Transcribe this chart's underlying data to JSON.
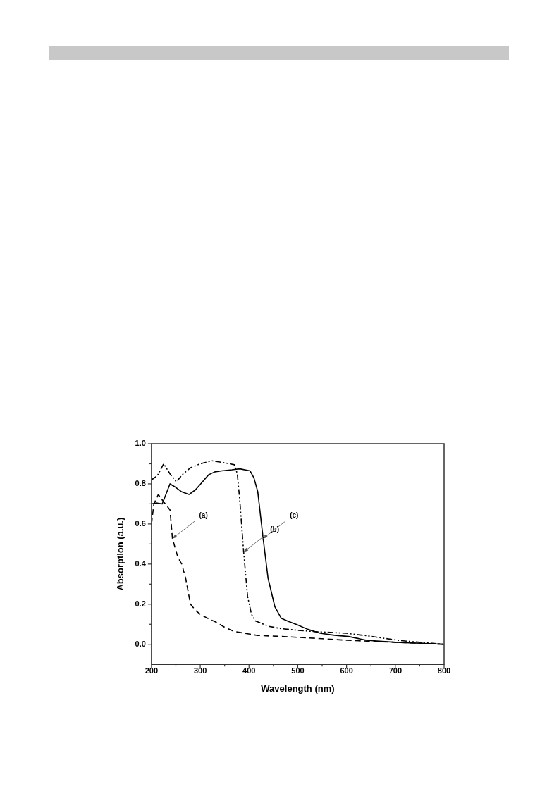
{
  "chart_data": {
    "type": "line",
    "xlabel": "Wavelength (nm)",
    "ylabel": "Absorption (a.u.)",
    "xlim": [
      200,
      800
    ],
    "xticks": [
      200,
      300,
      400,
      500,
      600,
      700,
      800
    ],
    "ylim": [
      -0.1,
      1.0
    ],
    "yticks": [
      {
        "value": 0,
        "label": "0.0"
      },
      {
        "value": 0.2,
        "label": "0.2"
      },
      {
        "value": 0.4,
        "label": "0.4"
      },
      {
        "value": 0.6,
        "label": "0.6"
      },
      {
        "value": 0.8,
        "label": "0.8"
      },
      {
        "value": 1.0,
        "label": "1.0"
      }
    ],
    "grid": false,
    "legend": false,
    "marker": "none",
    "series": [
      {
        "color": "#000000",
        "line_style": "dashed",
        "x": [
          200,
          205,
          214,
          225,
          238,
          243,
          254,
          262,
          270,
          280,
          290,
          301,
          315,
          333,
          350,
          370,
          418,
          460,
          500,
          550,
          600,
          650,
          700,
          750,
          800
        ],
        "values": [
          0.6,
          0.7,
          0.747,
          0.71,
          0.67,
          0.527,
          0.435,
          0.4,
          0.33,
          0.2,
          0.17,
          0.148,
          0.13,
          0.11,
          0.085,
          0.064,
          0.044,
          0.04,
          0.035,
          0.028,
          0.02,
          0.015,
          0.01,
          0.005,
          0.0
        ]
      },
      {
        "color": "#000000",
        "line_style": "dotted",
        "x": [
          200,
          212,
          225,
          238,
          251,
          265,
          280,
          300,
          323,
          350,
          370,
          376,
          381,
          389,
          397,
          405,
          413,
          440,
          466,
          500,
          530,
          600,
          650,
          705,
          750,
          800
        ],
        "values": [
          0.82,
          0.84,
          0.9,
          0.85,
          0.81,
          0.85,
          0.88,
          0.9,
          0.915,
          0.905,
          0.895,
          0.85,
          0.72,
          0.46,
          0.24,
          0.15,
          0.117,
          0.09,
          0.078,
          0.07,
          0.064,
          0.055,
          0.04,
          0.02,
          0.01,
          0.0
        ]
      },
      {
        "color": "#000000",
        "line_style": "solid",
        "x": [
          200,
          210,
          222,
          230,
          238,
          248,
          262,
          277,
          290,
          301,
          317,
          330,
          344,
          365,
          381,
          402,
          410,
          418,
          429,
          439,
          453,
          466,
          480,
          498,
          520,
          546,
          575,
          604,
          641,
          700,
          750,
          800
        ],
        "values": [
          0.7,
          0.705,
          0.7,
          0.75,
          0.8,
          0.785,
          0.76,
          0.747,
          0.77,
          0.8,
          0.845,
          0.86,
          0.865,
          0.87,
          0.875,
          0.865,
          0.83,
          0.76,
          0.527,
          0.33,
          0.187,
          0.13,
          0.115,
          0.098,
          0.075,
          0.055,
          0.045,
          0.039,
          0.02,
          0.01,
          0.005,
          0.0
        ]
      }
    ],
    "annotations": [
      {
        "text": "(a)",
        "x": 243,
        "y": 0.527
      },
      {
        "text": "(b)",
        "x": 389,
        "y": 0.46
      },
      {
        "text": "(c)",
        "x": 429,
        "y": 0.527
      }
    ]
  }
}
